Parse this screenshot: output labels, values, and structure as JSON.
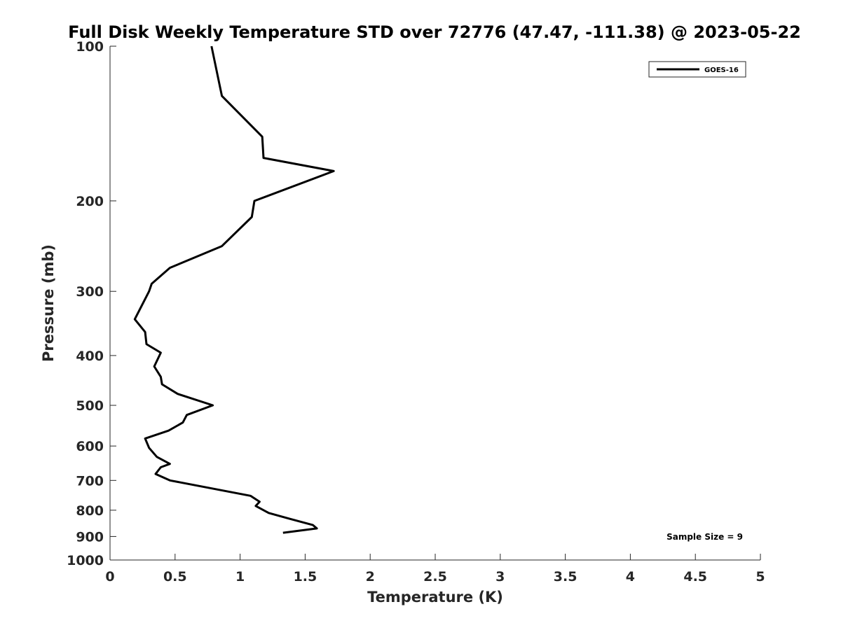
{
  "chart_data": {
    "type": "line",
    "title": "Full Disk Weekly Temperature STD over 72776 (47.47, -111.38) @ 2023-05-22",
    "xlabel": "Temperature (K)",
    "ylabel": "Pressure (mb)",
    "xlim": [
      0,
      5
    ],
    "ylim": [
      100,
      1000
    ],
    "yscale": "log",
    "yreversed": true,
    "grid": false,
    "legend_position": "top-right",
    "x_ticks": [
      "0",
      "0.5",
      "1",
      "1.5",
      "2",
      "2.5",
      "3",
      "3.5",
      "4",
      "4.5",
      "5"
    ],
    "y_ticks": [
      "100",
      "200",
      "300",
      "400",
      "500",
      "600",
      "700",
      "800",
      "900",
      "1000"
    ],
    "series": [
      {
        "name": "GOES-16",
        "color": "#000000",
        "points": [
          [
            0.78,
            100
          ],
          [
            0.86,
            125
          ],
          [
            1.17,
            150
          ],
          [
            1.18,
            165
          ],
          [
            1.72,
            175
          ],
          [
            1.11,
            200
          ],
          [
            1.09,
            215
          ],
          [
            0.86,
            245
          ],
          [
            0.46,
            270
          ],
          [
            0.32,
            290
          ],
          [
            0.3,
            300
          ],
          [
            0.19,
            340
          ],
          [
            0.27,
            360
          ],
          [
            0.28,
            380
          ],
          [
            0.39,
            395
          ],
          [
            0.34,
            420
          ],
          [
            0.39,
            440
          ],
          [
            0.4,
            455
          ],
          [
            0.52,
            475
          ],
          [
            0.79,
            500
          ],
          [
            0.59,
            522
          ],
          [
            0.56,
            540
          ],
          [
            0.45,
            560
          ],
          [
            0.27,
            580
          ],
          [
            0.3,
            605
          ],
          [
            0.36,
            630
          ],
          [
            0.46,
            650
          ],
          [
            0.39,
            660
          ],
          [
            0.35,
            680
          ],
          [
            0.46,
            700
          ],
          [
            1.08,
            750
          ],
          [
            1.15,
            770
          ],
          [
            1.12,
            785
          ],
          [
            1.22,
            810
          ],
          [
            1.37,
            830
          ],
          [
            1.56,
            855
          ],
          [
            1.59,
            868
          ],
          [
            1.33,
            885
          ]
        ]
      }
    ],
    "annotation": "Sample Size = 9"
  }
}
